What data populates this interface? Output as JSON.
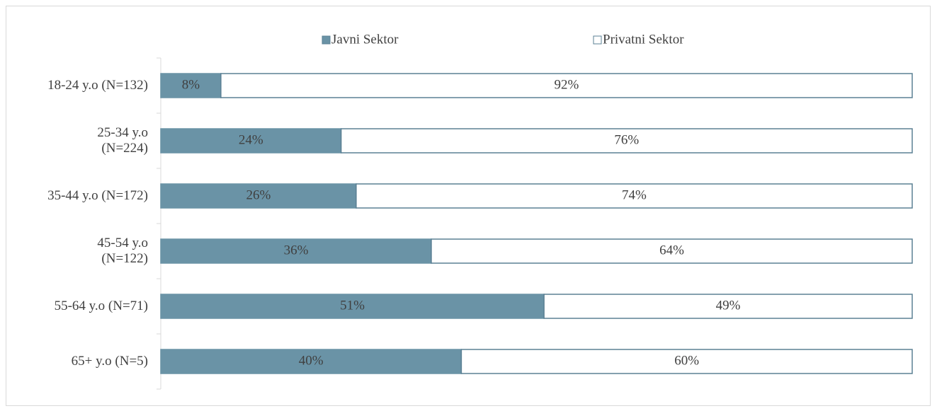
{
  "chart_data": {
    "type": "stacked-barh",
    "categories": [
      "18-24 y.o (N=132)",
      "25-34 y.o\n(N=224)",
      "35-44 y.o (N=172)",
      "45-54 y.o\n(N=122)",
      "55-64 y.o (N=71)",
      "65+ y.o (N=5)"
    ],
    "series": [
      {
        "name": "Javni Sektor",
        "color": "#6a93a6",
        "values": [
          8,
          24,
          26,
          36,
          51,
          40
        ],
        "value_labels": [
          "8%",
          "24%",
          "26%",
          "36%",
          "51%",
          "40%"
        ]
      },
      {
        "name": "Privatni Sektor",
        "color": "#ffffff",
        "values": [
          92,
          76,
          74,
          64,
          49,
          60
        ],
        "value_labels": [
          "92%",
          "76%",
          "74%",
          "64%",
          "49%",
          "60%"
        ]
      }
    ],
    "legend": "top"
  }
}
